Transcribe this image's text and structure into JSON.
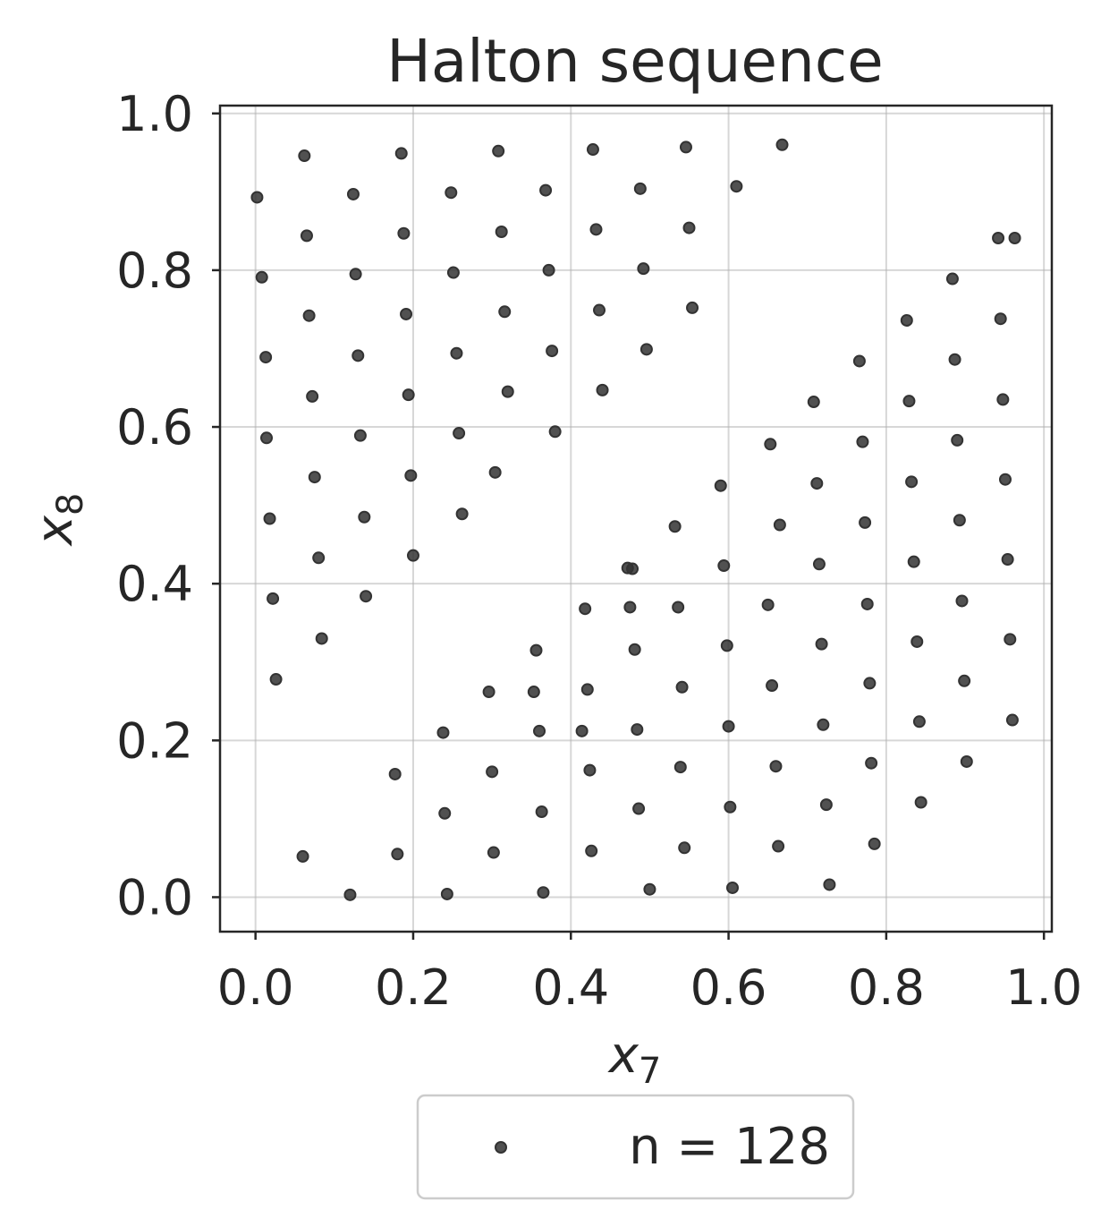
{
  "chart_data": {
    "type": "scatter",
    "title": "Halton sequence",
    "xlabel_base": "x",
    "xlabel_sub": "7",
    "ylabel_base": "x",
    "ylabel_sub": "8",
    "xlim": [
      -0.045,
      1.01
    ],
    "ylim": [
      -0.044,
      1.01
    ],
    "xticks": [
      0.0,
      0.2,
      0.4,
      0.6,
      0.8,
      1.0
    ],
    "yticks": [
      0.0,
      0.2,
      0.4,
      0.6,
      0.8,
      1.0
    ],
    "xtick_labels": [
      "0.0",
      "0.2",
      "0.4",
      "0.6",
      "0.8",
      "1.0"
    ],
    "ytick_labels": [
      "0.0",
      "0.2",
      "0.4",
      "0.6",
      "0.8",
      "1.0"
    ],
    "grid": true,
    "legend_placement": "bottom-center-below",
    "point_color": "#333333",
    "series": [
      {
        "name": "n = 128",
        "legend_label": "n = 128",
        "x": [
          0.002,
          0.008,
          0.013,
          0.018,
          0.022,
          0.026,
          0.014,
          0.062,
          0.065,
          0.068,
          0.072,
          0.075,
          0.08,
          0.084,
          0.06,
          0.124,
          0.127,
          0.13,
          0.133,
          0.138,
          0.14,
          0.12,
          0.185,
          0.188,
          0.191,
          0.194,
          0.197,
          0.2,
          0.18,
          0.177,
          0.248,
          0.251,
          0.255,
          0.258,
          0.262,
          0.243,
          0.24,
          0.238,
          0.308,
          0.312,
          0.316,
          0.32,
          0.304,
          0.302,
          0.3,
          0.296,
          0.368,
          0.372,
          0.376,
          0.38,
          0.365,
          0.363,
          0.36,
          0.356,
          0.353,
          0.428,
          0.432,
          0.436,
          0.44,
          0.426,
          0.424,
          0.421,
          0.418,
          0.414,
          0.472,
          0.488,
          0.492,
          0.496,
          0.5,
          0.486,
          0.484,
          0.481,
          0.478,
          0.475,
          0.546,
          0.55,
          0.554,
          0.532,
          0.539,
          0.541,
          0.544,
          0.536,
          0.61,
          0.59,
          0.598,
          0.6,
          0.602,
          0.605,
          0.594,
          0.668,
          0.653,
          0.65,
          0.655,
          0.66,
          0.663,
          0.665,
          0.708,
          0.712,
          0.715,
          0.718,
          0.72,
          0.724,
          0.728,
          0.766,
          0.77,
          0.773,
          0.776,
          0.779,
          0.781,
          0.785,
          0.826,
          0.829,
          0.832,
          0.835,
          0.839,
          0.842,
          0.844,
          0.884,
          0.887,
          0.89,
          0.893,
          0.896,
          0.899,
          0.902,
          0.942,
          0.945,
          0.948,
          0.951,
          0.954,
          0.957,
          0.96,
          0.963
        ],
        "y": [
          0.893,
          0.791,
          0.689,
          0.483,
          0.381,
          0.278,
          0.586,
          0.946,
          0.844,
          0.742,
          0.639,
          0.536,
          0.433,
          0.33,
          0.052,
          0.897,
          0.795,
          0.691,
          0.589,
          0.485,
          0.384,
          0.003,
          0.949,
          0.847,
          0.744,
          0.641,
          0.538,
          0.436,
          0.055,
          0.157,
          0.899,
          0.797,
          0.694,
          0.592,
          0.489,
          0.004,
          0.107,
          0.21,
          0.952,
          0.849,
          0.747,
          0.645,
          0.542,
          0.057,
          0.16,
          0.262,
          0.902,
          0.8,
          0.697,
          0.594,
          0.006,
          0.109,
          0.212,
          0.315,
          0.262,
          0.954,
          0.852,
          0.749,
          0.647,
          0.059,
          0.162,
          0.265,
          0.368,
          0.212,
          0.42,
          0.904,
          0.802,
          0.699,
          0.01,
          0.113,
          0.214,
          0.316,
          0.419,
          0.37,
          0.957,
          0.854,
          0.752,
          0.473,
          0.166,
          0.268,
          0.063,
          0.37,
          0.907,
          0.525,
          0.321,
          0.218,
          0.115,
          0.012,
          0.423,
          0.96,
          0.578,
          0.373,
          0.27,
          0.167,
          0.065,
          0.475,
          0.632,
          0.528,
          0.425,
          0.323,
          0.22,
          0.118,
          0.016,
          0.684,
          0.581,
          0.478,
          0.374,
          0.273,
          0.171,
          0.068,
          0.736,
          0.633,
          0.53,
          0.428,
          0.326,
          0.224,
          0.121,
          0.789,
          0.686,
          0.583,
          0.481,
          0.378,
          0.276,
          0.173,
          0.841,
          0.738,
          0.635,
          0.533,
          0.431,
          0.329,
          0.226,
          0.841
        ]
      }
    ]
  }
}
